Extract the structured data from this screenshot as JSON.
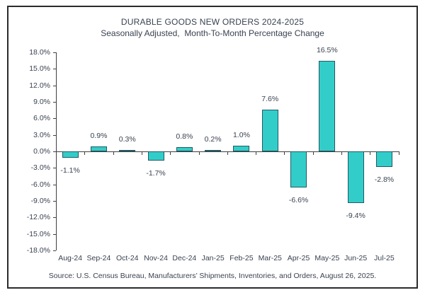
{
  "header": {
    "title": "DURABLE GOODS NEW ORDERS 2024-2025",
    "subtitle": "Seasonally Adjusted,  Month-To-Month Percentage Change"
  },
  "footer": {
    "source": "Source: U.S. Census Bureau, Manufacturers’ Shipments, Inventories, and Orders, August 26, 2025."
  },
  "chart_data": {
    "type": "bar",
    "title": "DURABLE GOODS NEW ORDERS 2024-2025",
    "subtitle": "Seasonally Adjusted,  Month-To-Month Percentage Change",
    "categories": [
      "Aug-24",
      "Sep-24",
      "Oct-24",
      "Nov-24",
      "Dec-24",
      "Jan-25",
      "Feb-25",
      "Mar-25",
      "Apr-25",
      "May-25",
      "Jun-25",
      "Jul-25"
    ],
    "values": [
      -1.1,
      0.9,
      0.3,
      -1.7,
      0.8,
      0.2,
      1.0,
      7.6,
      -6.6,
      16.5,
      -9.4,
      -2.8
    ],
    "data_labels": [
      "-1.1%",
      "0.9%",
      "0.3%",
      "-1.7%",
      "0.8%",
      "0.2%",
      "1.0%",
      "7.6%",
      "-6.6%",
      "16.5%",
      "-9.4%",
      "-2.8%"
    ],
    "xlabel": "",
    "ylabel": "",
    "ylim": [
      -18,
      18
    ],
    "ytick_step": 3,
    "ytick_labels": [
      "18.0%",
      "15.0%",
      "12.0%",
      "9.0%",
      "6.0%",
      "3.0%",
      "0.0%",
      "-3.0%",
      "-6.0%",
      "-9.0%",
      "-12.0%",
      "-15.0%",
      "-18.0%"
    ],
    "grid": false,
    "legend": false
  },
  "colors": {
    "bar_fill": "#33cdc9",
    "bar_border": "#215a64",
    "axis": "#404040",
    "text": "#3a4250",
    "frame_border": "#2b2b2b",
    "background": "#ffffff"
  }
}
